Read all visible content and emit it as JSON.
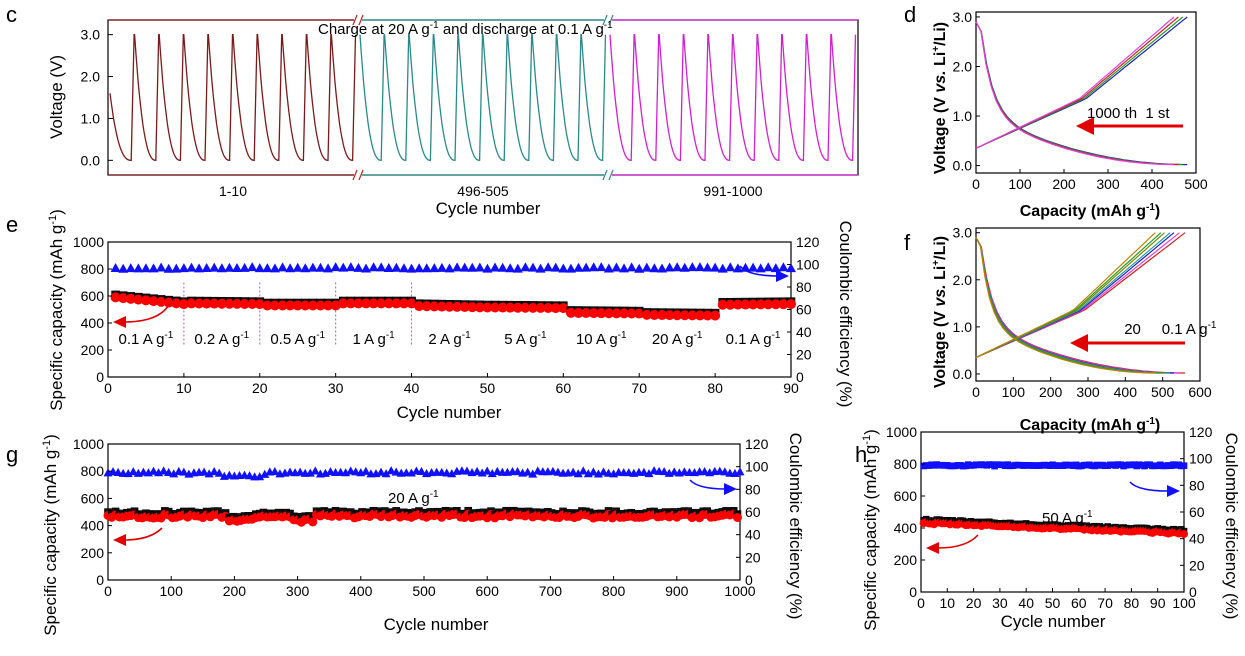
{
  "panel_labels": {
    "c": "c",
    "d": "d",
    "e": "e",
    "f": "f",
    "g": "g",
    "h": "h"
  },
  "colors": {
    "seg1": "#7a1a1a",
    "seg2": "#2a8a8a",
    "seg3": "#d020d0",
    "capacity_marker": "#ff0000",
    "capacity_marker_edge": "#000000",
    "ce_marker": "#1010ff",
    "arrow_red": "#e00000",
    "arrow_blue": "#1010ff"
  },
  "chart_data": [
    {
      "id": "c",
      "type": "line",
      "title": "Charge at 20 A g-1 and discharge at 0.1 A g-1",
      "title_main": "Charge at 20 A g",
      "title_sup1": "-1",
      "title_mid": " and discharge at 0.1 A g",
      "title_sup2": "-1",
      "ylabel": "Voltage (V)",
      "xlabel": "Cycle number",
      "ylim": [
        -0.35,
        3.35
      ],
      "yticks": [
        "0.0",
        "1.0",
        "2.0",
        "3.0"
      ],
      "segments": [
        {
          "label": "1-10",
          "cycles": 10,
          "color": "#7a1a1a"
        },
        {
          "label": "496-505",
          "cycles": 10,
          "color": "#2a8a8a"
        },
        {
          "label": "991-1000",
          "cycles": 10,
          "color": "#d020d0"
        }
      ],
      "cycle_profile": {
        "v_max": 3.0,
        "v_min": 0.0,
        "v_start": 1.6
      }
    },
    {
      "id": "d",
      "type": "line",
      "xlabel_main": "Capacity (mAh g",
      "xlabel_sup": "-1",
      "xlabel_end": ")",
      "ylabel_a": "Voltage (V ",
      "ylabel_vs": "vs.",
      "ylabel_b": " Li",
      "ylabel_sup": "+",
      "ylabel_c": "/Li)",
      "xlim": [
        0,
        500
      ],
      "ylim": [
        -0.15,
        3.1
      ],
      "xticks": [
        0,
        100,
        200,
        300,
        400,
        500
      ],
      "yticks": [
        "0.0",
        "1.0",
        "2.0",
        "3.0"
      ],
      "annotation": "1000 th  1 st",
      "series": [
        {
          "capacity": 480,
          "knee": 250,
          "color": "#2020c0"
        },
        {
          "capacity": 470,
          "knee": 245,
          "color": "#20a020"
        },
        {
          "capacity": 460,
          "knee": 240,
          "color": "#d02020"
        },
        {
          "capacity": 450,
          "knee": 235,
          "color": "#e040e0"
        }
      ]
    },
    {
      "id": "e",
      "type": "scatter",
      "xlabel": "Cycle number",
      "ylabel_main": "Specific capacity (mAh g",
      "ylabel_sup": "-1",
      "ylabel_end": ")",
      "y2label": "Coulombic efficiency (%)",
      "xlim": [
        0,
        90
      ],
      "ylim": [
        0,
        1000
      ],
      "y2lim": [
        0,
        120
      ],
      "xticks": [
        0,
        10,
        20,
        30,
        40,
        50,
        60,
        70,
        80,
        90
      ],
      "yticks": [
        0,
        200,
        400,
        600,
        800,
        1000
      ],
      "y2ticks": [
        0,
        20,
        40,
        60,
        80,
        100,
        120
      ],
      "rate_labels": [
        "0.1 A g",
        "0.2 A g",
        "0.5 A g",
        "1 A g",
        "2 A g",
        "5 A g",
        "10 A g",
        "20 A g",
        "0.1 A g"
      ],
      "rate_label_sup": "-1",
      "rate_label_x": [
        5,
        15,
        25,
        35,
        45,
        55,
        65,
        75,
        85
      ],
      "dividers": [
        10,
        20,
        30,
        40
      ],
      "capacity_blocks": [
        {
          "from": 1,
          "to": 10,
          "start": 600,
          "end": 550
        },
        {
          "from": 11,
          "to": 20,
          "start": 555,
          "end": 550
        },
        {
          "from": 21,
          "to": 30,
          "start": 540,
          "end": 540
        },
        {
          "from": 31,
          "to": 40,
          "start": 555,
          "end": 555
        },
        {
          "from": 41,
          "to": 50,
          "start": 535,
          "end": 525
        },
        {
          "from": 51,
          "to": 60,
          "start": 525,
          "end": 520
        },
        {
          "from": 61,
          "to": 70,
          "start": 485,
          "end": 480
        },
        {
          "from": 71,
          "to": 80,
          "start": 470,
          "end": 465
        },
        {
          "from": 81,
          "to": 90,
          "start": 545,
          "end": 550
        }
      ],
      "coulombic_efficiency": 97
    },
    {
      "id": "f",
      "type": "line",
      "xlabel_main": "Capacity (mAh g",
      "xlabel_sup": "-1",
      "xlabel_end": ")",
      "ylabel_a": "Voltage (V ",
      "ylabel_vs": "vs.",
      "ylabel_b": " Li",
      "ylabel_sup": "+",
      "ylabel_c": "/Li)",
      "xlim": [
        0,
        600
      ],
      "ylim": [
        -0.15,
        3.1
      ],
      "xticks": [
        0,
        100,
        200,
        300,
        400,
        500,
        600
      ],
      "yticks": [
        "0.0",
        "1.0",
        "2.0",
        "3.0"
      ],
      "annotation": "20     0.1 A g",
      "annotation_sup": "-1",
      "series": [
        {
          "capacity": 560,
          "knee": 290,
          "color": "#d02020"
        },
        {
          "capacity": 545,
          "knee": 285,
          "color": "#e040e0"
        },
        {
          "capacity": 530,
          "knee": 280,
          "color": "#2020c0"
        },
        {
          "capacity": 520,
          "knee": 275,
          "color": "#20a0a0"
        },
        {
          "capacity": 505,
          "knee": 270,
          "color": "#808000"
        },
        {
          "capacity": 495,
          "knee": 265,
          "color": "#20a020"
        },
        {
          "capacity": 480,
          "knee": 260,
          "color": "#c08000"
        }
      ]
    },
    {
      "id": "g",
      "type": "scatter",
      "xlabel": "Cycle number",
      "ylabel_main": "Specific capacity (mAh g",
      "ylabel_sup": "-1",
      "ylabel_end": ")",
      "y2label": "Coulombic efficiency (%)",
      "xlim": [
        0,
        1000
      ],
      "ylim": [
        0,
        1000
      ],
      "y2lim": [
        0,
        120
      ],
      "xticks": [
        0,
        100,
        200,
        300,
        400,
        500,
        600,
        700,
        800,
        900,
        1000
      ],
      "yticks": [
        0,
        200,
        400,
        600,
        800,
        1000
      ],
      "y2ticks": [
        0,
        20,
        40,
        60,
        80,
        100,
        120
      ],
      "annotation": "20 A g",
      "annotation_sup": "-1",
      "capacity_mean": 470,
      "coulombic_efficiency": 95
    },
    {
      "id": "h",
      "type": "scatter",
      "xlabel": "Cycle number",
      "ylabel_main": "Specific capacity (mAh g",
      "ylabel_sup": "-1",
      "ylabel_end": ")",
      "y2label": "Coulombic efficiency (%)",
      "xlim": [
        0,
        100
      ],
      "ylim": [
        0,
        1000
      ],
      "y2lim": [
        0,
        120
      ],
      "xticks": [
        0,
        10,
        20,
        30,
        40,
        50,
        60,
        70,
        80,
        90,
        100
      ],
      "yticks": [
        0,
        200,
        400,
        600,
        800,
        1000
      ],
      "y2ticks": [
        0,
        20,
        40,
        60,
        80,
        100,
        120
      ],
      "annotation": "50 A g",
      "annotation_sup": "-1",
      "capacity_start": 440,
      "capacity_end": 375,
      "coulombic_efficiency": 95
    }
  ]
}
